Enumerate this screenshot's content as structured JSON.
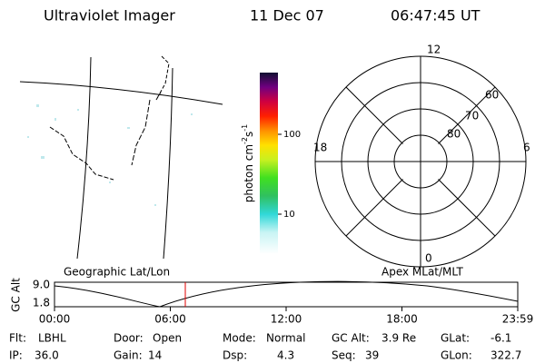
{
  "header": {
    "title": "Ultraviolet Imager",
    "date": "11 Dec 07",
    "time": "06:47:45 UT"
  },
  "colorbar": {
    "label": {
      "unit": "photon cm",
      "exp1": "-2",
      "unit2": "s",
      "exp2": "-1"
    },
    "ticks": [
      "100",
      "10"
    ]
  },
  "polar": {
    "mlt": [
      "12",
      "18",
      "6",
      "0"
    ],
    "mlat": [
      "60",
      "70",
      "80"
    ]
  },
  "map_label": "Geographic Lat/Lon",
  "polar_label": "Apex MLat/MLT",
  "altplot": {
    "ylabel": "GC Alt",
    "yticks": [
      "9.0",
      "1.8"
    ],
    "xticks": [
      "00:00",
      "06:00",
      "12:00",
      "18:00",
      "23:59"
    ]
  },
  "status": [
    [
      {
        "label": "Flt:",
        "value": "LBHL"
      },
      {
        "label": "Door:",
        "value": "Open"
      },
      {
        "label": "Mode:",
        "value": "Normal"
      },
      {
        "label": "GC Alt:",
        "value": "3.9 Re"
      },
      {
        "label": "GLat:",
        "value": "-6.1"
      }
    ],
    [
      {
        "label": "IP:",
        "value": "36.0"
      },
      {
        "label": "Gain:",
        "value": "14"
      },
      {
        "label": "Dsp:",
        "value": "4.3"
      },
      {
        "label": "Seq:",
        "value": "39"
      },
      {
        "label": "GLon:",
        "value": "322.7"
      }
    ]
  ]
}
